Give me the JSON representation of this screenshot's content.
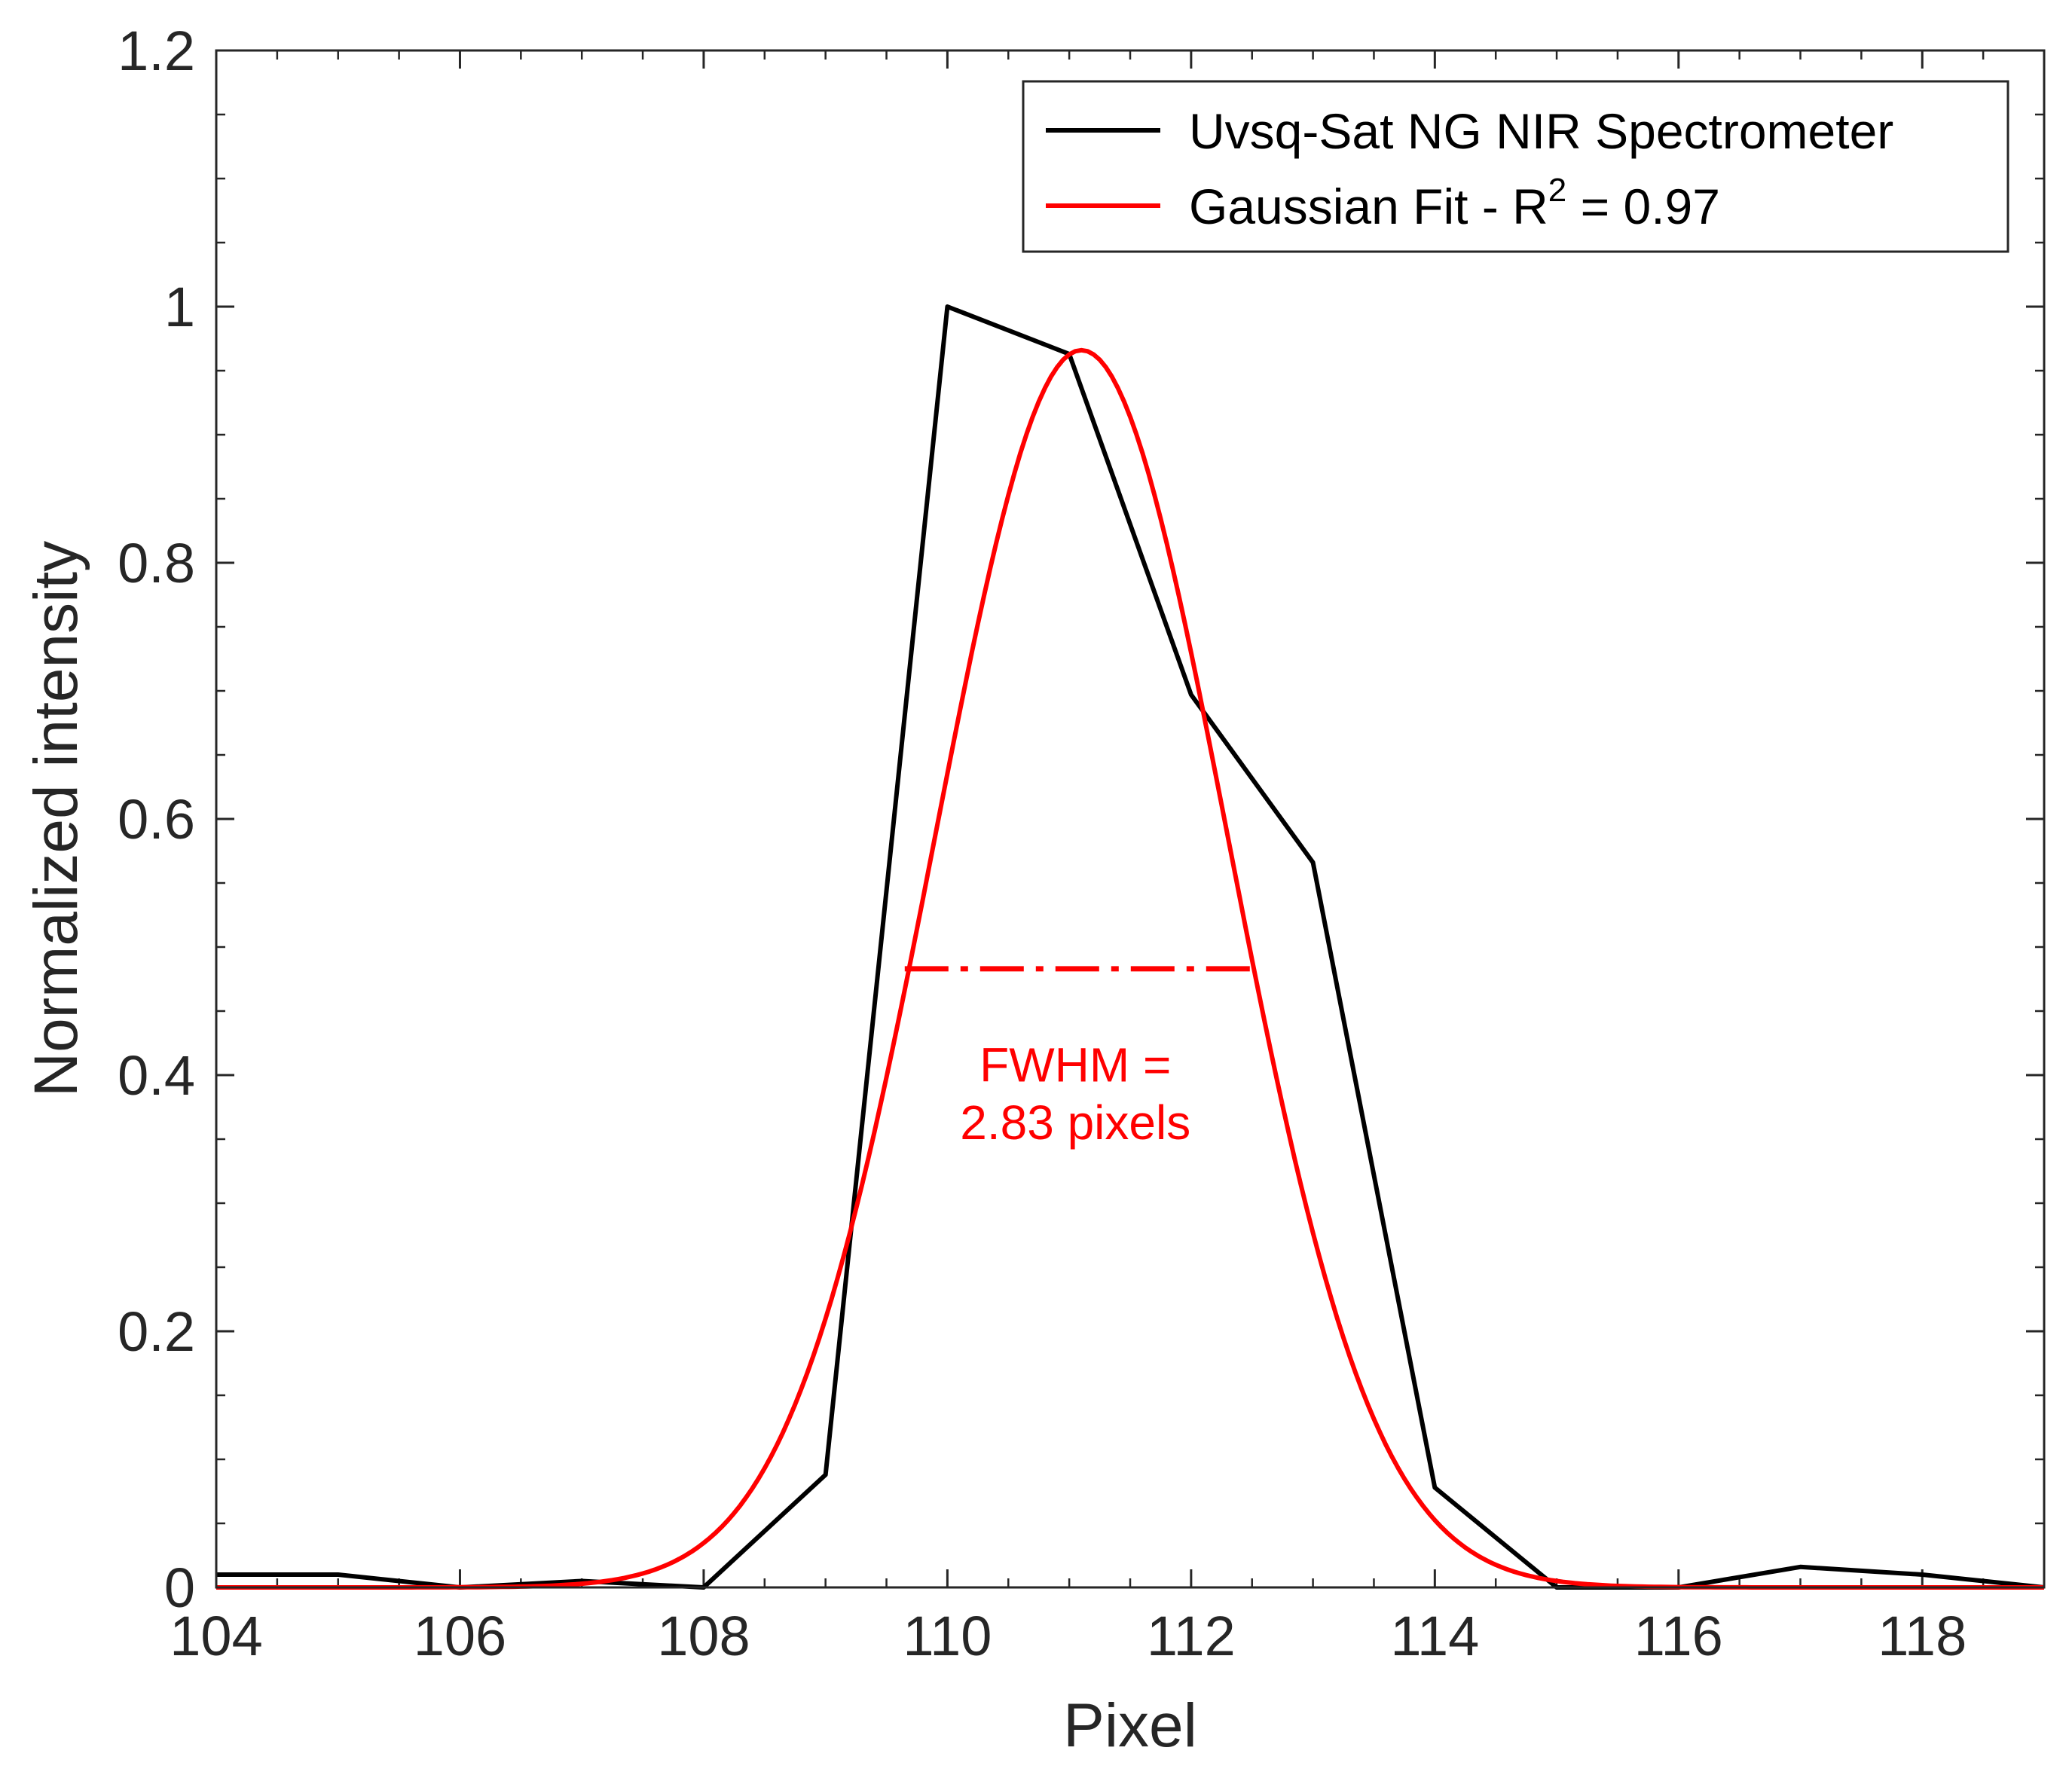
{
  "chart_data": {
    "type": "line",
    "xlabel": "Pixel",
    "ylabel": "Normalized intensity",
    "xlim": [
      104,
      119
    ],
    "ylim": [
      0,
      1.2
    ],
    "xticks": [
      104,
      106,
      108,
      110,
      112,
      114,
      116,
      118
    ],
    "xtick_labels": [
      "104",
      "106",
      "108",
      "110",
      "112",
      "114",
      "116",
      "118"
    ],
    "yticks": [
      0,
      0.2,
      0.4,
      0.6,
      0.8,
      1,
      1.2
    ],
    "ytick_labels": [
      "0",
      "0.2",
      "0.4",
      "0.6",
      "0.8",
      "1",
      "1.2"
    ],
    "legend_position": "top-right",
    "series": [
      {
        "name": "Uvsq-Sat NG NIR Spectrometer",
        "color": "#000000",
        "x": [
          104,
          105,
          106,
          107,
          108,
          109,
          110,
          111,
          112,
          113,
          114,
          115,
          116,
          117,
          118,
          119
        ],
        "y": [
          0.01,
          0.01,
          0.0,
          0.005,
          0.0,
          0.088,
          1.0,
          0.963,
          0.697,
          0.566,
          0.078,
          0.0,
          0.0,
          0.016,
          0.01,
          0.0
        ]
      },
      {
        "name": "Gaussian Fit - R",
        "name_superscript": "2",
        "name_suffix": " = 0.97",
        "color": "#ff0000",
        "curve": "gaussian",
        "amplitude": 0.966,
        "center": 111.1,
        "fwhm": 2.83,
        "x_range": [
          104,
          119
        ]
      }
    ],
    "annotations": {
      "fwhm_line": {
        "x_start": 109.65,
        "x_end": 112.55,
        "y": 0.483,
        "style": "dash-dot",
        "color": "#ff0000"
      },
      "fwhm_text_line1": "FWHM =",
      "fwhm_text_line2": "2.83 pixels",
      "fwhm_text_x": 111.05,
      "fwhm_text_y_line1": 0.395,
      "fwhm_text_y_line2": 0.35,
      "text_color": "#ff0000"
    }
  }
}
